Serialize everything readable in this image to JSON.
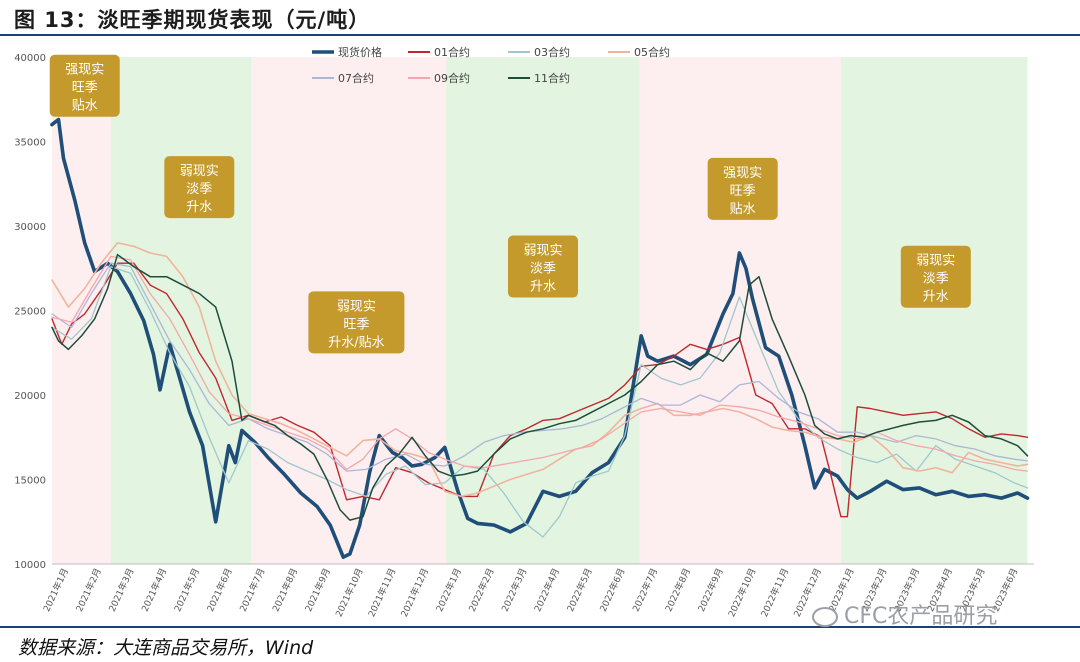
{
  "title": "图 13：淡旺季期现货表现（元/吨）",
  "source": "数据来源：大连商品交易所，Wind",
  "watermark": "CFC农产品研究",
  "colors": {
    "spot": "#1f4e79",
    "c01": "#c0282e",
    "c03": "#9fc8cc",
    "c05": "#f0b49c",
    "c07": "#aeb6d6",
    "c09": "#f4a6ac",
    "c11": "#1e4d3c",
    "band_pink": "#fdeef0",
    "band_green": "#e3f5e1",
    "box": "#c49a2c"
  },
  "chart_data": {
    "type": "line",
    "title": "淡旺季期现货表现（元/吨）",
    "ylim": [
      10000,
      40000
    ],
    "yticks": [
      10000,
      15000,
      20000,
      25000,
      30000,
      35000,
      40000
    ],
    "ytick_labels": [
      "10000",
      "15000",
      "20000",
      "25000",
      "30000",
      "35000",
      "40000"
    ],
    "xlim": [
      0,
      30
    ],
    "x_labels": [
      "2021年1月",
      "2021年2月",
      "2021年3月",
      "2021年4月",
      "2021年5月",
      "2021年6月",
      "2021年7月",
      "2021年8月",
      "2021年9月",
      "2021年10月",
      "2021年11月",
      "2021年12月",
      "2022年1月",
      "2022年2月",
      "2022年3月",
      "2022年4月",
      "2022年5月",
      "2022年6月",
      "2022年7月",
      "2022年8月",
      "2022年9月",
      "2022年10月",
      "2022年11月",
      "2022年12月",
      "2023年1月",
      "2023年2月",
      "2023年3月",
      "2023年4月",
      "2023年5月",
      "2023年6月"
    ],
    "bands": [
      {
        "start": 0.0,
        "end": 1.8,
        "kind": "pink",
        "label": [
          "强现实",
          "旺季",
          "贴水"
        ],
        "label_x": 1.0,
        "label_y": 38300
      },
      {
        "start": 1.8,
        "end": 6.1,
        "kind": "green",
        "label": [
          "弱现实",
          "淡季",
          "升水"
        ],
        "label_x": 4.5,
        "label_y": 32300
      },
      {
        "start": 6.1,
        "end": 12.05,
        "kind": "pink",
        "label": [
          "弱现实",
          "旺季",
          "升水/贴水"
        ],
        "label_x": 9.3,
        "label_y": 24300
      },
      {
        "start": 12.05,
        "end": 17.95,
        "kind": "green",
        "label": [
          "弱现实",
          "淡季",
          "升水"
        ],
        "label_x": 15.0,
        "label_y": 27600
      },
      {
        "start": 17.95,
        "end": 24.1,
        "kind": "pink",
        "label": [
          "强现实",
          "旺季",
          "贴水"
        ],
        "label_x": 21.1,
        "label_y": 32200
      },
      {
        "start": 24.1,
        "end": 29.8,
        "kind": "green",
        "label": [
          "弱现实",
          "淡季",
          "升水"
        ],
        "label_x": 27.0,
        "label_y": 27000
      }
    ],
    "series": [
      {
        "name": "现货价格",
        "color_key": "spot",
        "width": 3.6,
        "x": [
          0,
          0.2,
          0.35,
          0.7,
          1.0,
          1.3,
          1.7,
          2.0,
          2.4,
          2.8,
          3.1,
          3.3,
          3.6,
          3.9,
          4.2,
          4.6,
          5.0,
          5.4,
          5.6,
          5.8,
          6.2,
          6.6,
          7.1,
          7.6,
          8.1,
          8.5,
          8.9,
          9.1,
          9.4,
          9.7,
          10.0,
          10.4,
          10.7,
          11.0,
          11.3,
          11.7,
          12.0,
          12.4,
          12.7,
          13.0,
          13.5,
          14.0,
          14.5,
          15.0,
          15.5,
          16.0,
          16.5,
          17.0,
          17.5,
          18.0,
          18.2,
          18.5,
          19.0,
          19.5,
          20.0,
          20.5,
          20.8,
          21.0,
          21.2,
          21.4,
          21.8,
          22.2,
          22.6,
          23.0,
          23.3,
          23.6,
          24.0,
          24.3,
          24.6,
          25.0,
          25.5,
          26.0,
          26.5,
          27.0,
          27.5,
          28.0,
          28.5,
          29.0,
          29.5,
          29.8
        ],
        "y": [
          36000,
          36300,
          34000,
          31500,
          29000,
          27300,
          27800,
          27300,
          26000,
          24400,
          22400,
          20300,
          23000,
          21000,
          19000,
          17000,
          12500,
          17000,
          16000,
          17900,
          17200,
          16300,
          15300,
          14200,
          13400,
          12300,
          10400,
          10600,
          12300,
          15400,
          17600,
          16600,
          16300,
          15800,
          15900,
          16300,
          16900,
          14300,
          12700,
          12400,
          12300,
          11900,
          12400,
          14300,
          14000,
          14300,
          15400,
          16000,
          17500,
          23500,
          22300,
          22000,
          22300,
          21800,
          22400,
          24800,
          26000,
          28400,
          27500,
          25700,
          22800,
          22300,
          20000,
          17000,
          14500,
          15600,
          15200,
          14400,
          13900,
          14300,
          14900,
          14400,
          14500,
          14100,
          14300,
          14000,
          14100,
          13900,
          14200,
          13900
        ]
      },
      {
        "name": "01合约",
        "color_key": "c01",
        "width": 1.4,
        "x": [
          0,
          0.3,
          0.6,
          1.0,
          1.5,
          2.0,
          2.5,
          3.0,
          3.5,
          4.0,
          4.5,
          5.0,
          5.5,
          6.0,
          6.5,
          7.0,
          7.5,
          8.0,
          8.5,
          9.0,
          9.5,
          10.0,
          10.5,
          11.0,
          11.5,
          12.0,
          12.5,
          13.0,
          13.5,
          14.0,
          14.5,
          15.0,
          15.5,
          16.0,
          16.5,
          17.0,
          17.5,
          18.0,
          18.5,
          19.0,
          19.5,
          20.0,
          20.5,
          21.0,
          21.5,
          22.0,
          22.5,
          23.0,
          23.5,
          23.8,
          24.1,
          24.3,
          24.6,
          25.0,
          25.5,
          26.0,
          26.5,
          27.0,
          27.5,
          28.0,
          28.5,
          29.0,
          29.5,
          29.8
        ],
        "y": [
          24500,
          23000,
          24200,
          24800,
          26200,
          27800,
          27800,
          26500,
          26000,
          24500,
          22500,
          21000,
          18500,
          18800,
          18400,
          18700,
          18200,
          17800,
          17000,
          13800,
          14000,
          13800,
          15700,
          15400,
          14800,
          14400,
          14000,
          14000,
          16500,
          17600,
          18000,
          18500,
          18600,
          19000,
          19400,
          19800,
          20600,
          21700,
          21800,
          22300,
          23000,
          22700,
          23000,
          23400,
          20000,
          19500,
          18000,
          18000,
          17500,
          15200,
          12800,
          12800,
          19300,
          19200,
          19000,
          18800,
          18900,
          19000,
          18600,
          18000,
          17500,
          17700,
          17600,
          17500
        ]
      },
      {
        "name": "03合约",
        "color_key": "c03",
        "width": 1.3,
        "x": [
          0,
          0.6,
          1.2,
          1.8,
          2.4,
          3.0,
          3.6,
          4.2,
          4.8,
          5.4,
          6.0,
          6.6,
          7.2,
          7.8,
          8.4,
          9.0,
          9.6,
          10.2,
          10.8,
          11.4,
          12.0,
          12.6,
          13.2,
          13.8,
          14.4,
          15.0,
          15.5,
          16.0,
          16.5,
          17.0,
          17.5,
          18.0,
          18.6,
          19.2,
          19.8,
          20.4,
          21.0,
          21.6,
          22.2,
          22.8,
          23.4,
          24.0,
          24.6,
          25.2,
          25.8,
          26.4,
          27.0,
          27.6,
          28.2,
          28.8,
          29.4,
          29.8
        ],
        "y": [
          24000,
          23300,
          24500,
          27600,
          27200,
          25000,
          22500,
          20500,
          17500,
          14800,
          17300,
          16800,
          16000,
          15500,
          15000,
          14400,
          14000,
          15300,
          15800,
          14700,
          14800,
          15800,
          15600,
          14200,
          12500,
          11600,
          12800,
          14800,
          15200,
          15500,
          17600,
          21800,
          21000,
          20600,
          21000,
          22500,
          25800,
          23000,
          20200,
          18600,
          17500,
          16800,
          16300,
          16000,
          16500,
          15500,
          17000,
          16200,
          15800,
          15400,
          14800,
          14500
        ]
      },
      {
        "name": "05合约",
        "color_key": "c05",
        "width": 1.6,
        "x": [
          0,
          0.5,
          1.0,
          1.5,
          2.0,
          2.5,
          3.0,
          3.5,
          4.0,
          4.5,
          5.0,
          5.5,
          6.0,
          6.5,
          7.0,
          7.5,
          8.0,
          8.5,
          9.0,
          9.5,
          10.0,
          10.5,
          11.0,
          11.5,
          12.0,
          12.5,
          13.0,
          13.5,
          14.0,
          14.5,
          15.0,
          15.5,
          16.0,
          16.5,
          17.0,
          17.5,
          18.0,
          18.5,
          19.0,
          19.5,
          20.0,
          20.5,
          21.0,
          21.5,
          22.0,
          22.5,
          23.0,
          23.5,
          24.0,
          24.5,
          25.0,
          25.5,
          26.0,
          26.5,
          27.0,
          27.5,
          28.0,
          28.5,
          29.0,
          29.5,
          29.8
        ],
        "y": [
          26800,
          25200,
          26300,
          27800,
          29000,
          28800,
          28400,
          28200,
          27000,
          25200,
          22000,
          20000,
          18900,
          18600,
          18300,
          17900,
          17400,
          16900,
          16400,
          17300,
          17400,
          16700,
          16500,
          16200,
          14300,
          14000,
          14200,
          14600,
          15000,
          15300,
          15600,
          16200,
          16800,
          17000,
          17800,
          18800,
          19200,
          19500,
          18800,
          18800,
          19000,
          19200,
          19000,
          18600,
          18100,
          17900,
          17800,
          17500,
          17400,
          17200,
          17600,
          16800,
          15700,
          15500,
          15700,
          15400,
          16600,
          16200,
          16000,
          15800,
          15900
        ]
      },
      {
        "name": "07合约",
        "color_key": "c07",
        "width": 1.3,
        "x": [
          0,
          0.6,
          1.2,
          1.8,
          2.4,
          3.0,
          3.6,
          4.2,
          4.8,
          5.4,
          6.0,
          6.6,
          7.2,
          7.8,
          8.4,
          9.0,
          9.6,
          10.2,
          10.8,
          11.4,
          12.0,
          12.6,
          13.2,
          13.8,
          14.4,
          15.0,
          15.6,
          16.2,
          16.8,
          17.4,
          18.0,
          18.6,
          19.2,
          19.8,
          20.4,
          21.0,
          21.6,
          22.2,
          22.8,
          23.4,
          24.0,
          24.6,
          25.2,
          25.8,
          26.4,
          27.0,
          27.6,
          28.2,
          28.8,
          29.4,
          29.8
        ],
        "y": [
          24800,
          24000,
          26000,
          27800,
          27600,
          25400,
          23200,
          21500,
          19500,
          18200,
          18600,
          18000,
          17600,
          17200,
          16500,
          15500,
          15600,
          16200,
          16500,
          15900,
          15800,
          16400,
          17200,
          17600,
          17800,
          17900,
          18000,
          18200,
          18600,
          19200,
          19800,
          19400,
          19400,
          20000,
          19600,
          20600,
          20800,
          19800,
          19000,
          18600,
          17800,
          17800,
          17500,
          17200,
          17600,
          17400,
          17000,
          16800,
          16400,
          16200,
          16100
        ]
      },
      {
        "name": "09合约",
        "color_key": "c09",
        "width": 1.3,
        "x": [
          0,
          0.6,
          1.2,
          1.8,
          2.4,
          3.0,
          3.6,
          4.2,
          4.8,
          5.4,
          6.0,
          6.6,
          7.2,
          7.8,
          8.4,
          9.0,
          9.5,
          10.0,
          10.5,
          11.0,
          11.5,
          12.0,
          12.6,
          13.2,
          13.8,
          14.4,
          15.0,
          15.6,
          16.2,
          16.8,
          17.4,
          18.0,
          18.6,
          19.2,
          19.8,
          20.4,
          21.0,
          21.6,
          22.2,
          22.8,
          23.4,
          24.0,
          24.6,
          25.2,
          25.8,
          26.4,
          27.0,
          27.6,
          28.2,
          28.8,
          29.4,
          29.8
        ],
        "y": [
          24600,
          24300,
          26300,
          28200,
          28000,
          26000,
          24500,
          22400,
          20200,
          18900,
          18600,
          18200,
          17800,
          17400,
          16800,
          15600,
          16200,
          17400,
          18000,
          17400,
          16600,
          16200,
          15800,
          15700,
          15900,
          16100,
          16300,
          16600,
          16900,
          17400,
          18200,
          19000,
          19200,
          19000,
          18800,
          19400,
          19300,
          19100,
          18700,
          18400,
          18000,
          17600,
          17400,
          17800,
          17300,
          17000,
          16800,
          16400,
          16100,
          15900,
          15600,
          15500
        ]
      },
      {
        "name": "11合约",
        "color_key": "c11",
        "width": 1.5,
        "x": [
          0,
          0.2,
          0.5,
          0.9,
          1.3,
          1.7,
          2.0,
          2.5,
          3.0,
          3.5,
          4.0,
          4.5,
          5.0,
          5.5,
          5.8,
          6.0,
          6.4,
          6.8,
          7.2,
          7.6,
          8.0,
          8.4,
          8.8,
          9.1,
          9.5,
          9.8,
          10.2,
          10.6,
          11.0,
          11.4,
          11.8,
          12.2,
          12.6,
          13.0,
          13.5,
          14.0,
          14.5,
          15.0,
          15.5,
          16.0,
          16.5,
          17.0,
          17.5,
          18.0,
          18.5,
          19.0,
          19.5,
          20.0,
          20.5,
          21.0,
          21.3,
          21.6,
          22.0,
          22.5,
          23.0,
          23.3,
          23.6,
          24.0,
          24.4,
          24.8,
          25.2,
          25.6,
          26.0,
          26.5,
          27.0,
          27.5,
          28.0,
          28.5,
          29.0,
          29.5,
          29.8
        ],
        "y": [
          24000,
          23200,
          22700,
          23500,
          24500,
          26300,
          28300,
          27600,
          27000,
          27000,
          26500,
          26000,
          25200,
          22000,
          18500,
          18800,
          18500,
          18200,
          17600,
          17100,
          16500,
          15000,
          13200,
          12600,
          12800,
          14500,
          15800,
          16500,
          17500,
          16400,
          15500,
          15200,
          15300,
          15500,
          16500,
          17400,
          17800,
          18000,
          18300,
          18500,
          19000,
          19500,
          20000,
          20800,
          21800,
          22000,
          21500,
          22500,
          22000,
          23200,
          26500,
          27000,
          24500,
          22300,
          20000,
          18200,
          17700,
          17400,
          17600,
          17500,
          17800,
          18000,
          18200,
          18400,
          18500,
          18800,
          18400,
          17600,
          17400,
          17000,
          16400
        ]
      }
    ]
  }
}
